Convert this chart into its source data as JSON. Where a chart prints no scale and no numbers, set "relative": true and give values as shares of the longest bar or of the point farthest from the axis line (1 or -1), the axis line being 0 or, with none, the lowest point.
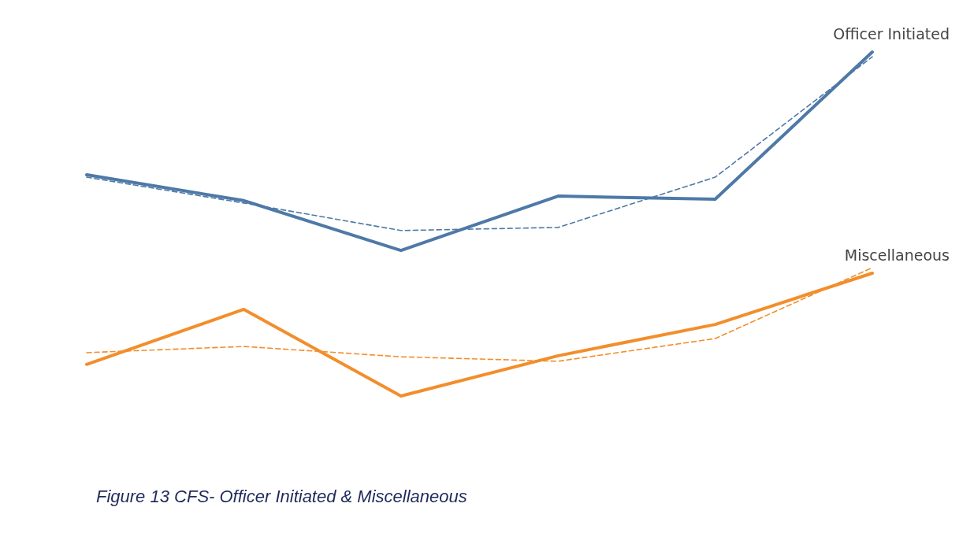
{
  "chart_data": {
    "type": "line",
    "relative": true,
    "categories": [
      null,
      null,
      null,
      null,
      null,
      null
    ],
    "series": [
      {
        "name": "Officer Initiated",
        "color": "#4e79a7",
        "values": [
          0.643,
          0.568,
          0.423,
          0.581,
          0.572,
          1.0
        ],
        "line_style": "solid"
      },
      {
        "name": "Miscellaneous",
        "color": "#f28e2b",
        "values": [
          0.092,
          0.252,
          0,
          0.117,
          0.208,
          0.357
        ],
        "line_style": "solid"
      },
      {
        "color": "#4e79a7",
        "values": [
          0.636,
          0.561,
          0.481,
          0.49,
          0.636,
          0.986
        ],
        "line_style": "dashed"
      },
      {
        "color": "#f28e2b",
        "values": [
          0.126,
          0.144,
          0.114,
          0.101,
          0.167,
          0.373
        ],
        "line_style": "dashed"
      }
    ],
    "annotations": [
      "Figure 13 CFS- Officer Initiated & Miscellaneous"
    ],
    "grid": false,
    "legend": false,
    "marker": "none"
  }
}
